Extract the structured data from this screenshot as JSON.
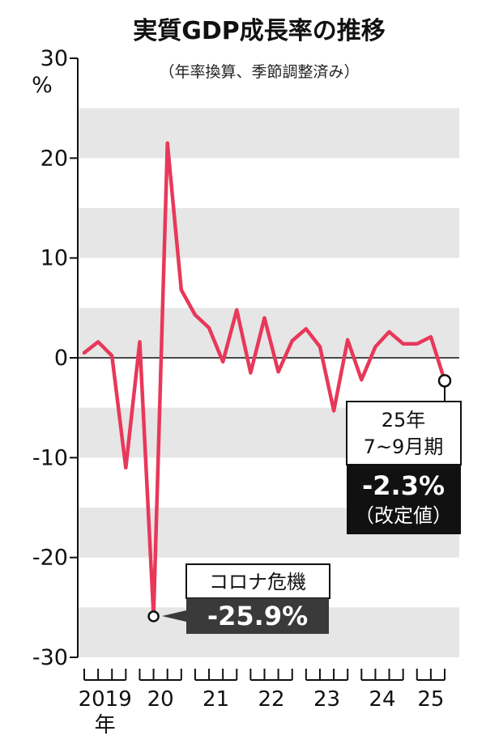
{
  "chart_data": {
    "type": "line",
    "title": "実質GDP成長率の推移",
    "subtitle": "（年率換算、季節調整済み）",
    "ylabel": "%",
    "ylim": [
      -30,
      30
    ],
    "y_ticks": [
      {
        "value": 30,
        "label": "30"
      },
      {
        "value": 20,
        "label": "20"
      },
      {
        "value": 10,
        "label": "10"
      },
      {
        "value": 0,
        "label": "0"
      },
      {
        "value": -10,
        "label": "-10"
      },
      {
        "value": -20,
        "label": "-20"
      },
      {
        "value": -30,
        "label": "-30"
      }
    ],
    "x_year_labels": [
      {
        "label": "2019",
        "suffix": "年"
      },
      {
        "label": "20"
      },
      {
        "label": "21"
      },
      {
        "label": "22"
      },
      {
        "label": "23"
      },
      {
        "label": "24"
      },
      {
        "label": "25"
      }
    ],
    "grid_bands": true,
    "series": [
      {
        "color": "#e8385a",
        "values": [
          0.5,
          1.6,
          0.2,
          -11.0,
          1.6,
          -25.9,
          21.5,
          6.8,
          4.3,
          3.0,
          -0.4,
          4.8,
          -1.5,
          4.0,
          -1.4,
          1.7,
          2.9,
          1.1,
          -5.3,
          1.8,
          -2.2,
          1.1,
          2.6,
          1.4,
          1.4,
          2.1,
          -2.3
        ]
      }
    ],
    "annotations": [
      {
        "index": 5,
        "value": -25.9,
        "label": "コロナ危機",
        "value_label": "-25.9%"
      },
      {
        "index": 26,
        "value": -2.3,
        "label_lines": [
          "25年",
          "7~9月期"
        ],
        "value_label": "-2.3%",
        "note": "（改定値）"
      }
    ]
  }
}
